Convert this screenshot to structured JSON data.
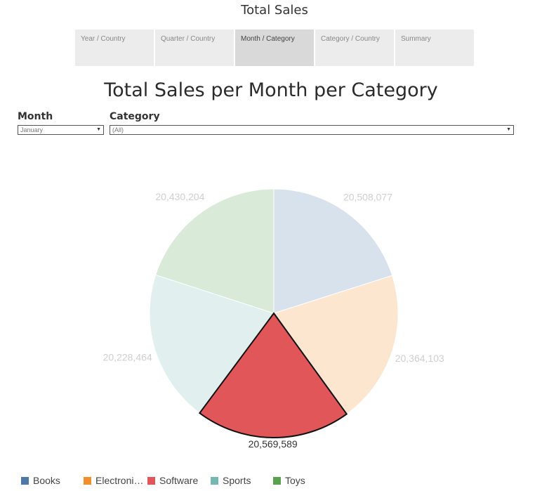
{
  "header": {
    "title": "Total Sales"
  },
  "tabs": [
    {
      "label": "Year / Country",
      "active": false
    },
    {
      "label": "Quarter / Country",
      "active": false
    },
    {
      "label": "Month / Category",
      "active": true
    },
    {
      "label": "Category / Country",
      "active": false
    },
    {
      "label": "Summary",
      "active": false
    }
  ],
  "filters": {
    "month": {
      "label": "Month",
      "value": "January"
    },
    "category": {
      "label": "Category",
      "value": "(All)"
    }
  },
  "chart_data": {
    "type": "pie",
    "title": "Total Sales per Month per Category",
    "categories": [
      "Books",
      "Electronics",
      "Software",
      "Sports",
      "Toys"
    ],
    "values": [
      20508077,
      20364103,
      20569589,
      20228464,
      20430204
    ],
    "value_labels": [
      "20,508,077",
      "20,364,103",
      "20,569,589",
      "20,228,464",
      "20,430,204"
    ],
    "colors": [
      "#4e79a7",
      "#f28e2b",
      "#e15759",
      "#76b7b2",
      "#59a14f"
    ],
    "highlighted": "Software",
    "legend": {
      "position": "bottom",
      "items": [
        "Books",
        "Electroni…",
        "Software",
        "Sports",
        "Toys"
      ]
    }
  }
}
